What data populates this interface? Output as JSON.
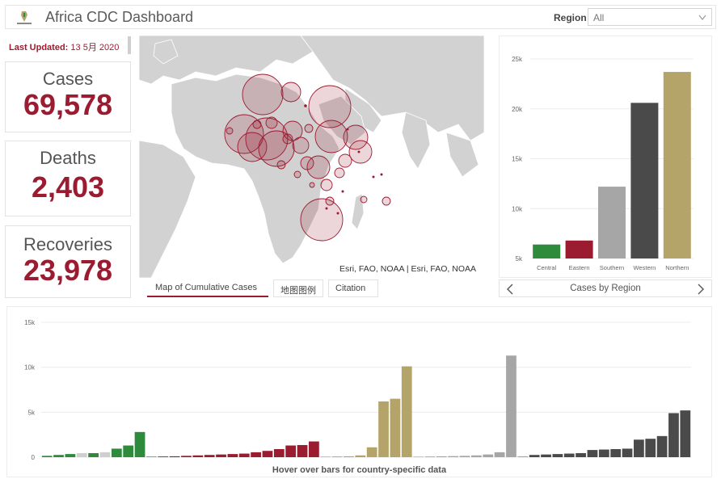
{
  "header": {
    "title": "Africa CDC Dashboard",
    "logo_icon": "africa-cdc-logo-icon",
    "region_label": "Region",
    "region_value": "All"
  },
  "last_updated": {
    "label": "Last Updated:",
    "value": "13 5月 2020"
  },
  "stats": {
    "cases_label": "Cases",
    "cases_value": "69,578",
    "deaths_label": "Deaths",
    "deaths_value": "2,403",
    "recoveries_label": "Recoveries",
    "recoveries_value": "23,978"
  },
  "map": {
    "attribution": "Esri, FAO, NOAA | Esri, FAO, NOAA",
    "tabs": [
      "Map of Cumulative Cases",
      "地图图例",
      "Citation"
    ],
    "active_tab": 0,
    "marker_color": "#9b1c31"
  },
  "region_nav": {
    "title": "Cases by Region",
    "prev_icon": "chevron-left-icon",
    "next_icon": "chevron-right-icon"
  },
  "country_chart": {
    "hint": "Hover over bars for country-specific data"
  },
  "colors": {
    "accent": "#9b1c31",
    "central": "#2e8b3c",
    "eastern": "#9b1c31",
    "southern": "#a6a6a6",
    "western": "#4a4a4a",
    "northern": "#b5a46a"
  },
  "chart_data": [
    {
      "type": "bar",
      "categories": [
        "Central",
        "Eastern",
        "Southern",
        "Western",
        "Northern"
      ],
      "values": [
        6400,
        6800,
        12200,
        20600,
        23700
      ],
      "colors": [
        "#2e8b3c",
        "#9b1c31",
        "#a6a6a6",
        "#4a4a4a",
        "#b5a46a"
      ],
      "ylim": [
        5000,
        25000
      ],
      "yticks": [
        5000,
        10000,
        15000,
        20000,
        25000
      ],
      "ytick_labels": [
        "5k",
        "10k",
        "15k",
        "20k",
        "25k"
      ],
      "grid": true
    },
    {
      "type": "bar",
      "ylim": [
        0,
        15000
      ],
      "yticks": [
        0,
        5000,
        10000,
        15000
      ],
      "ytick_labels": [
        "0",
        "5k",
        "10k",
        "15k"
      ],
      "grid": true,
      "series": [
        {
          "values": [
            150,
            250,
            350,
            450,
            450,
            550,
            950,
            1300,
            2800
          ],
          "colors": [
            "#2e8b3c",
            "#2e8b3c",
            "#2e8b3c",
            "#cfcfcf",
            "#2e8b3c",
            "#cfcfcf",
            "#2e8b3c",
            "#2e8b3c",
            "#2e8b3c"
          ]
        },
        {
          "values": [
            50,
            80,
            100,
            150,
            200,
            250,
            300,
            350,
            400,
            550,
            700,
            900,
            1300,
            1350,
            1750
          ],
          "color": "#9b1c31"
        },
        {
          "values": [
            60,
            80,
            100,
            200,
            1100,
            6200,
            6500,
            10100
          ],
          "color": "#b5a46a"
        },
        {
          "values": [
            60,
            80,
            100,
            120,
            150,
            200,
            300,
            550,
            11300,
            100
          ],
          "color": "#a6a6a6"
        },
        {
          "values": [
            250,
            300,
            350,
            400,
            450,
            800,
            850,
            900,
            950,
            1950,
            2050,
            2350,
            4900,
            5200
          ],
          "color": "#4a4a4a"
        }
      ]
    }
  ]
}
